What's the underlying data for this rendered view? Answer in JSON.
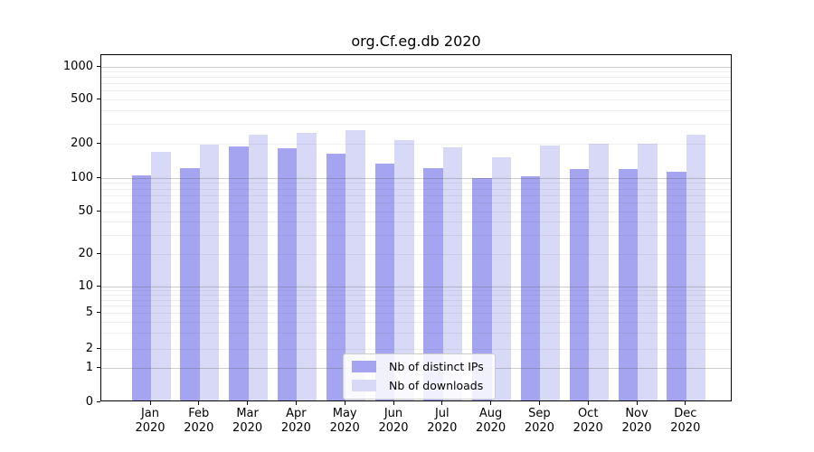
{
  "title": "org.Cf.eg.db 2020",
  "chart_data": {
    "type": "bar",
    "categories": [
      "Jan 2020",
      "Feb 2020",
      "Mar 2020",
      "Apr 2020",
      "May 2020",
      "Jun 2020",
      "Jul 2020",
      "Aug 2020",
      "Sep 2020",
      "Oct 2020",
      "Nov 2020",
      "Dec 2020"
    ],
    "x_tick_line1": [
      "Jan",
      "Feb",
      "Mar",
      "Apr",
      "May",
      "Jun",
      "Jul",
      "Aug",
      "Sep",
      "Oct",
      "Nov",
      "Dec"
    ],
    "x_tick_line2": "2020",
    "series": [
      {
        "name": "Nb of distinct IPs",
        "color": "#a4a4f0",
        "values": [
          102,
          118,
          183,
          178,
          158,
          129,
          119,
          96,
          100,
          117,
          115,
          110
        ]
      },
      {
        "name": "Nb of downloads",
        "color": "#d8d8f7",
        "values": [
          166,
          190,
          234,
          245,
          257,
          210,
          180,
          147,
          187,
          193,
          194,
          233
        ]
      }
    ],
    "yscale": "symlog",
    "ylim": [
      0,
      1400
    ],
    "yticks": [
      0,
      1,
      2,
      5,
      10,
      20,
      50,
      100,
      200,
      500,
      1000
    ],
    "grid": true,
    "legend_position": "inside lower-center",
    "colors": {
      "axis": "#000000",
      "major_grid": "#c6c6c6",
      "minor_grid": "#ebebeb",
      "background": "#ffffff"
    }
  }
}
